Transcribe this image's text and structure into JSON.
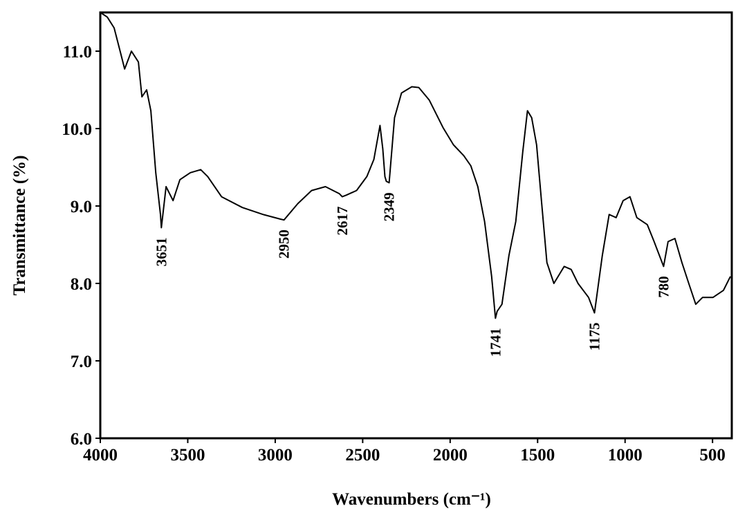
{
  "chart_data": {
    "type": "line",
    "x_label": "Wavenumbers (cm⁻¹)",
    "y_label": "Transmittance (%)",
    "color": "#000000",
    "x": [
      4000,
      3960,
      3921,
      3881,
      3861,
      3822,
      3782,
      3762,
      3735,
      3711,
      3683,
      3656,
      3651,
      3624,
      3584,
      3545,
      3485,
      3426,
      3386,
      3307,
      3188,
      3069,
      2970,
      2950,
      2871,
      2792,
      2713,
      2634,
      2617,
      2594,
      2535,
      2476,
      2436,
      2401,
      2385,
      2373,
      2365,
      2349,
      2318,
      2278,
      2219,
      2179,
      2120,
      2040,
      1981,
      1922,
      1882,
      1842,
      1803,
      1763,
      1741,
      1731,
      1704,
      1664,
      1625,
      1585,
      1558,
      1534,
      1506,
      1478,
      1447,
      1407,
      1348,
      1308,
      1269,
      1209,
      1175,
      1130,
      1091,
      1051,
      1011,
      972,
      933,
      873,
      834,
      780,
      754,
      715,
      675,
      636,
      596,
      557,
      497,
      438,
      398
    ],
    "values": [
      11.5,
      11.44,
      11.3,
      10.95,
      10.77,
      11.0,
      10.86,
      10.41,
      10.5,
      10.23,
      9.43,
      8.89,
      8.72,
      9.25,
      9.07,
      9.34,
      9.43,
      9.47,
      9.38,
      9.12,
      8.98,
      8.89,
      8.83,
      8.82,
      9.03,
      9.2,
      9.25,
      9.16,
      9.12,
      9.14,
      9.2,
      9.38,
      9.6,
      10.04,
      9.74,
      9.38,
      9.32,
      9.3,
      10.14,
      10.46,
      10.54,
      10.53,
      10.37,
      10.01,
      9.79,
      9.65,
      9.52,
      9.25,
      8.8,
      8.09,
      7.55,
      7.64,
      7.73,
      8.36,
      8.8,
      9.7,
      10.23,
      10.14,
      9.79,
      9.07,
      8.27,
      8.0,
      8.22,
      8.18,
      8.0,
      7.82,
      7.62,
      8.36,
      8.89,
      8.85,
      9.07,
      9.12,
      8.85,
      8.76,
      8.54,
      8.22,
      8.54,
      8.58,
      8.27,
      8.0,
      7.73,
      7.82,
      7.82,
      7.91,
      8.09
    ],
    "annotations": [
      {
        "label": "3651",
        "x": 3651
      },
      {
        "label": "2950",
        "x": 2950
      },
      {
        "label": "2617",
        "x": 2617
      },
      {
        "label": "2349",
        "x": 2349
      },
      {
        "label": "1741",
        "x": 1741
      },
      {
        "label": "1175",
        "x": 1175
      },
      {
        "label": "780",
        "x": 780
      }
    ],
    "xlim": [
      4000,
      390
    ],
    "ylim": [
      6,
      11.5
    ],
    "xticks": [
      4000,
      3500,
      3000,
      2500,
      2000,
      1500,
      1000,
      500
    ],
    "yticks": [
      {
        "value": 6,
        "label": "6.0"
      },
      {
        "value": 7,
        "label": "7.0"
      },
      {
        "value": 8,
        "label": "8.0"
      },
      {
        "value": 9,
        "label": "9.0"
      },
      {
        "value": 10,
        "label": "10.0"
      },
      {
        "value": 11,
        "label": "11.0"
      }
    ]
  }
}
